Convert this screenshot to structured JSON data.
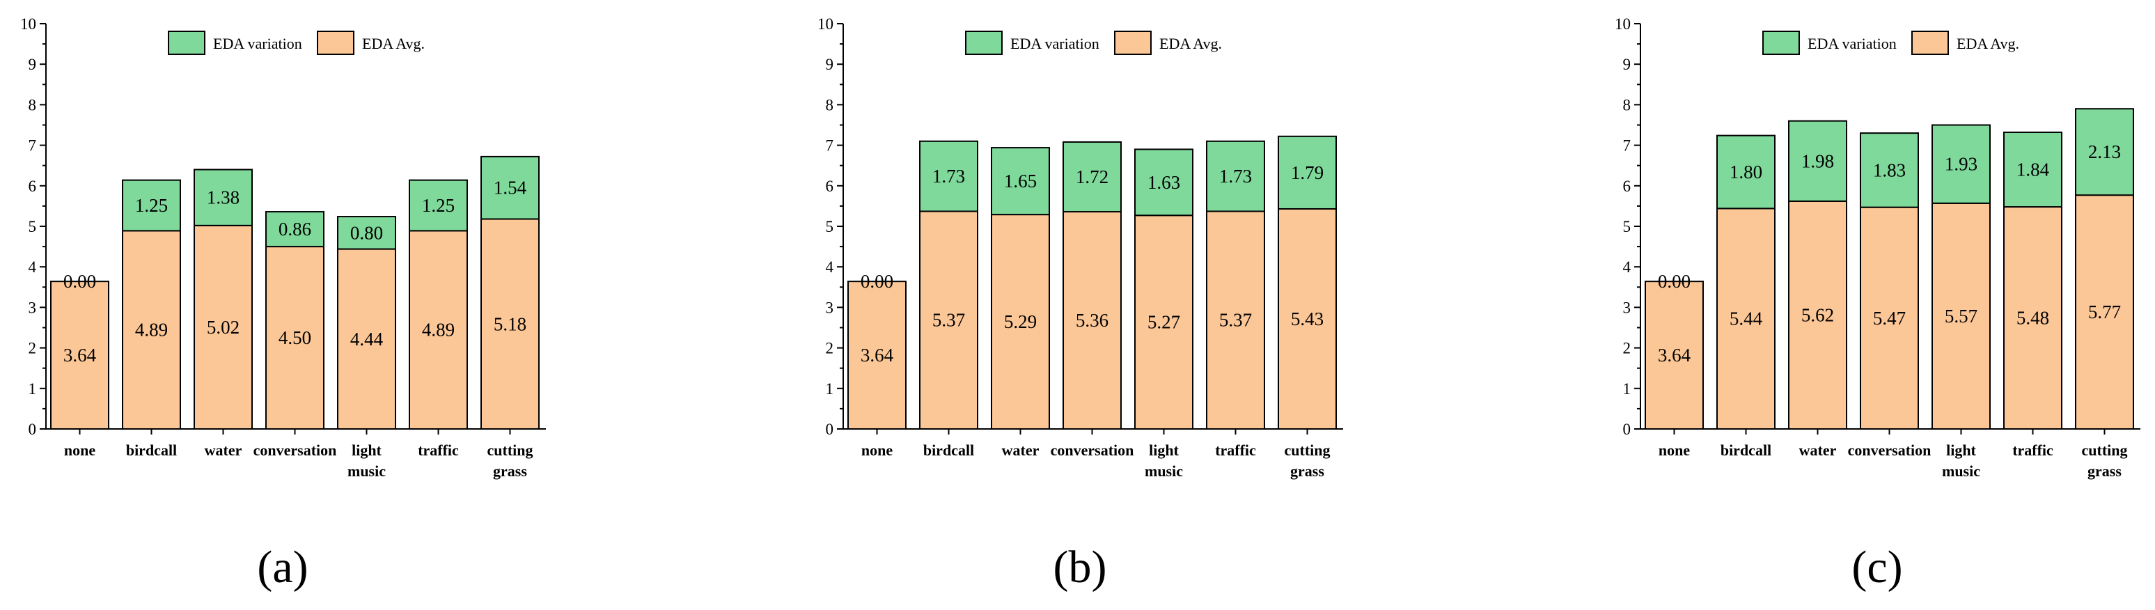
{
  "colors": {
    "variation": "#7fd99b",
    "avg": "#fcc797"
  },
  "legend": {
    "variation": "EDA variation",
    "avg": "EDA Avg."
  },
  "chart_data": [
    {
      "type": "bar",
      "stacked": true,
      "panel_label": "(a)",
      "categories": [
        "none",
        "birdcall",
        "water",
        "conversation",
        "light music",
        "traffic",
        "cutting grass"
      ],
      "series": [
        {
          "name": "EDA Avg.",
          "values": [
            3.64,
            4.89,
            5.02,
            4.5,
            4.44,
            4.89,
            5.18
          ],
          "labels": [
            "3.64",
            "4.89",
            "5.02",
            "4.50",
            "4.44",
            "4.89",
            "5.18"
          ]
        },
        {
          "name": "EDA variation",
          "values": [
            0.0,
            1.25,
            1.38,
            0.86,
            0.8,
            1.25,
            1.54
          ],
          "labels": [
            "0.00",
            "1.25",
            "1.38",
            "0.86",
            "0.80",
            "1.25",
            "1.54"
          ]
        }
      ],
      "ylim": [
        0,
        10
      ],
      "yticks": [
        "0",
        "1",
        "2",
        "3",
        "4",
        "5",
        "6",
        "7",
        "8",
        "9",
        "10"
      ],
      "legend_position": "top"
    },
    {
      "type": "bar",
      "stacked": true,
      "panel_label": "(b)",
      "categories": [
        "none",
        "birdcall",
        "water",
        "conversation",
        "light music",
        "traffic",
        "cutting grass"
      ],
      "series": [
        {
          "name": "EDA Avg.",
          "values": [
            3.64,
            5.37,
            5.29,
            5.36,
            5.27,
            5.37,
            5.43
          ],
          "labels": [
            "3.64",
            "5.37",
            "5.29",
            "5.36",
            "5.27",
            "5.37",
            "5.43"
          ]
        },
        {
          "name": "EDA variation",
          "values": [
            0.0,
            1.73,
            1.65,
            1.72,
            1.63,
            1.73,
            1.79
          ],
          "labels": [
            "0.00",
            "1.73",
            "1.65",
            "1.72",
            "1.63",
            "1.73",
            "1.79"
          ]
        }
      ],
      "ylim": [
        0,
        10
      ],
      "yticks": [
        "0",
        "1",
        "2",
        "3",
        "4",
        "5",
        "6",
        "7",
        "8",
        "9",
        "10"
      ],
      "legend_position": "top"
    },
    {
      "type": "bar",
      "stacked": true,
      "panel_label": "(c)",
      "categories": [
        "none",
        "birdcall",
        "water",
        "conversation",
        "light music",
        "traffic",
        "cutting grass"
      ],
      "series": [
        {
          "name": "EDA Avg.",
          "values": [
            3.64,
            5.44,
            5.62,
            5.47,
            5.57,
            5.48,
            5.77
          ],
          "labels": [
            "3.64",
            "5.44",
            "5.62",
            "5.47",
            "5.57",
            "5.48",
            "5.77"
          ]
        },
        {
          "name": "EDA variation",
          "values": [
            0.0,
            1.8,
            1.98,
            1.83,
            1.93,
            1.84,
            2.13
          ],
          "labels": [
            "0.00",
            "1.80",
            "1.98",
            "1.83",
            "1.93",
            "1.84",
            "2.13"
          ]
        }
      ],
      "ylim": [
        0,
        10
      ],
      "yticks": [
        "0",
        "1",
        "2",
        "3",
        "4",
        "5",
        "6",
        "7",
        "8",
        "9",
        "10"
      ],
      "legend_position": "top"
    }
  ]
}
